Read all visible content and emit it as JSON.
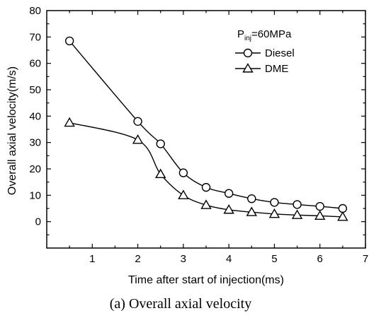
{
  "chart_data": {
    "type": "line",
    "title": "",
    "xlabel": "Time after start of injection(ms)",
    "ylabel": "Overall axial velocity(m/s)",
    "xlim": [
      0,
      7
    ],
    "ylim": [
      -10,
      80
    ],
    "xticks": [
      1,
      2,
      3,
      4,
      5,
      6,
      7
    ],
    "yticks": [
      0,
      10,
      20,
      30,
      40,
      50,
      60,
      70,
      80
    ],
    "grid": false,
    "legend_position": "top-right",
    "legend_title": {
      "main": "P",
      "sub": "inj",
      "rest": "=60MPa"
    },
    "series": [
      {
        "name": "Diesel",
        "marker": "circle",
        "x": [
          0.5,
          2.0,
          2.5,
          3.0,
          3.5,
          4.0,
          4.5,
          5.0,
          5.5,
          6.0,
          6.5
        ],
        "y": [
          68.5,
          38.0,
          29.5,
          18.5,
          13.0,
          10.7,
          8.7,
          7.3,
          6.5,
          5.8,
          5.0
        ]
      },
      {
        "name": "DME",
        "marker": "triangle",
        "x": [
          0.5,
          2.0,
          2.5,
          3.0,
          3.5,
          4.0,
          4.5,
          5.0,
          5.5,
          6.0,
          6.5
        ],
        "y": [
          37.5,
          31.0,
          18.0,
          10.0,
          6.3,
          4.5,
          3.6,
          2.9,
          2.5,
          2.2,
          1.8
        ]
      }
    ]
  },
  "caption": "(a) Overall axial velocity",
  "colors": {
    "line": "#000000",
    "background": "#ffffff"
  }
}
